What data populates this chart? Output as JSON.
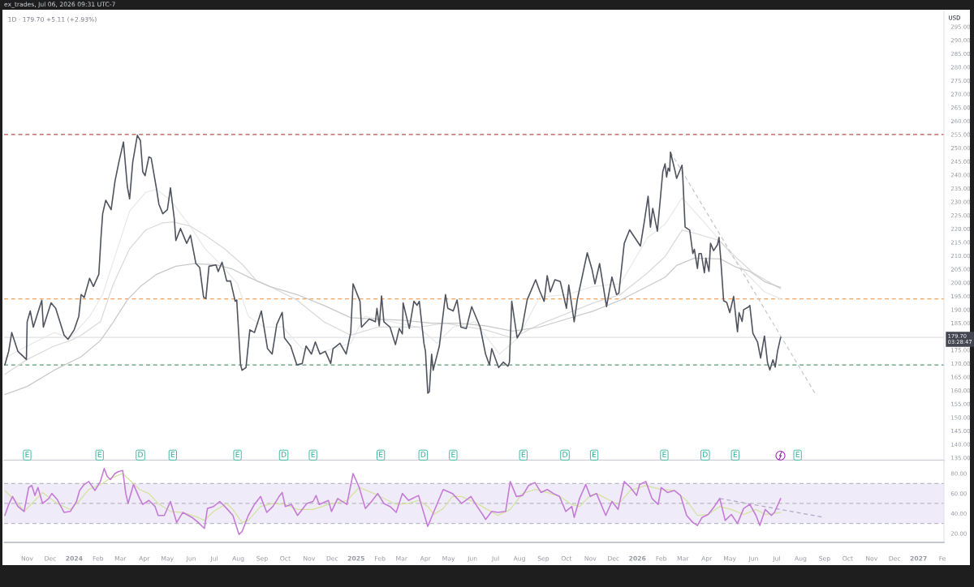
{
  "chart_data": [
    {
      "type": "line",
      "title": "1D · 179.70 +5.11 (+2.93%)",
      "ylabel": "USD",
      "xlim": [
        "2023-10-02",
        "2027-02-03"
      ],
      "ylim": [
        134,
        301
      ],
      "tick_labels": "y",
      "yticks": [
        {
          "value": 135,
          "label": "135.00"
        },
        {
          "value": 140,
          "label": "140.00"
        },
        {
          "value": 145,
          "label": "145.00"
        },
        {
          "value": 150,
          "label": "150.00"
        },
        {
          "value": 155,
          "label": "155.00"
        },
        {
          "value": 160,
          "label": "160.00"
        },
        {
          "value": 165,
          "label": "165.00"
        },
        {
          "value": 170,
          "label": "170.00"
        },
        {
          "value": 175,
          "label": "175.00"
        },
        {
          "value": 185,
          "label": "185.00"
        },
        {
          "value": 190,
          "label": "190.00"
        },
        {
          "value": 195,
          "label": "195.00"
        },
        {
          "value": 200,
          "label": "200.00"
        },
        {
          "value": 205,
          "label": "205.00"
        },
        {
          "value": 210,
          "label": "210.00"
        },
        {
          "value": 215,
          "label": "215.00"
        },
        {
          "value": 220,
          "label": "220.00"
        },
        {
          "value": 225,
          "label": "225.00"
        },
        {
          "value": 230,
          "label": "230.00"
        },
        {
          "value": 235,
          "label": "235.00"
        },
        {
          "value": 240,
          "label": "240.00"
        },
        {
          "value": 245,
          "label": "245.00"
        },
        {
          "value": 250,
          "label": "250.00"
        },
        {
          "value": 255,
          "label": "255.00"
        },
        {
          "value": 260,
          "label": "260.00"
        },
        {
          "value": 265,
          "label": "265.00"
        },
        {
          "value": 270,
          "label": "270.00"
        },
        {
          "value": 275,
          "label": "275.00"
        },
        {
          "value": 280,
          "label": "280.00"
        },
        {
          "value": 285,
          "label": "285.00"
        },
        {
          "value": 290,
          "label": "290.00"
        },
        {
          "value": 295,
          "label": "295.00"
        }
      ],
      "series": [
        {
          "color": "#50535e",
          "x": [
            "2023-10-03",
            "2023-10-08",
            "2023-10-12",
            "2023-10-20",
            "2023-10-31",
            "2023-11-01",
            "2023-11-05",
            "2023-11-09",
            "2023-11-20",
            "2023-11-22",
            "2023-12-02",
            "2023-12-08",
            "2023-12-19",
            "2023-12-24",
            "2024-01-01",
            "2024-01-07",
            "2024-01-10",
            "2024-01-14",
            "2024-01-21",
            "2024-01-26",
            "2024-02-02",
            "2024-02-05",
            "2024-02-07",
            "2024-02-11",
            "2024-02-18",
            "2024-02-23",
            "2024-02-28",
            "2024-03-05",
            "2024-03-10",
            "2024-03-13",
            "2024-03-17",
            "2024-03-23",
            "2024-03-27",
            "2024-03-30",
            "2024-04-02",
            "2024-04-07",
            "2024-04-10",
            "2024-04-17",
            "2024-04-20",
            "2024-04-25",
            "2024-05-01",
            "2024-05-05",
            "2024-05-10",
            "2024-05-12",
            "2024-05-18",
            "2024-05-26",
            "2024-05-31",
            "2024-06-07",
            "2024-06-12",
            "2024-06-17",
            "2024-06-20",
            "2024-06-24",
            "2024-07-03",
            "2024-07-06",
            "2024-07-11",
            "2024-07-17",
            "2024-07-22",
            "2024-07-28",
            "2024-07-30",
            "2024-08-04",
            "2024-08-06",
            "2024-08-11",
            "2024-08-16",
            "2024-08-22",
            "2024-08-31",
            "2024-09-08",
            "2024-09-14",
            "2024-09-20",
            "2024-09-27",
            "2024-09-30",
            "2024-10-08",
            "2024-10-16",
            "2024-10-23",
            "2024-10-28",
            "2024-11-04",
            "2024-11-09",
            "2024-11-15",
            "2024-11-22",
            "2024-11-29",
            "2024-12-02",
            "2024-12-11",
            "2024-12-19",
            "2024-12-25",
            "2024-12-28",
            "2025-01-06",
            "2025-01-08",
            "2025-01-18",
            "2025-01-26",
            "2025-01-28",
            "2025-01-31",
            "2025-02-03",
            "2025-02-06",
            "2025-02-14",
            "2025-02-21",
            "2025-02-26",
            "2025-03-02",
            "2025-03-03",
            "2025-03-11",
            "2025-03-17",
            "2025-03-21",
            "2025-03-24",
            "2025-03-30",
            "2025-04-01",
            "2025-04-04",
            "2025-04-06",
            "2025-04-09",
            "2025-04-11",
            "2025-04-19",
            "2025-04-27",
            "2025-04-30",
            "2025-05-07",
            "2025-05-12",
            "2025-05-17",
            "2025-05-24",
            "2025-05-31",
            "2025-06-11",
            "2025-06-18",
            "2025-06-23",
            "2025-06-26",
            "2025-07-05",
            "2025-07-11",
            "2025-07-17",
            "2025-07-19",
            "2025-07-22",
            "2025-07-29",
            "2025-08-04",
            "2025-08-11",
            "2025-08-22",
            "2025-08-27",
            "2025-09-02",
            "2025-09-06",
            "2025-09-10",
            "2025-09-16",
            "2025-09-23",
            "2025-10-01",
            "2025-10-04",
            "2025-10-11",
            "2025-10-15",
            "2025-10-28",
            "2025-11-03",
            "2025-11-07",
            "2025-11-13",
            "2025-11-22",
            "2025-11-29",
            "2025-12-05",
            "2025-12-08",
            "2025-12-15",
            "2025-12-22",
            "2025-12-29",
            "2026-01-05",
            "2026-01-10",
            "2026-01-15",
            "2026-01-18",
            "2026-01-21",
            "2026-01-27",
            "2026-01-31",
            "2026-02-03",
            "2026-02-06",
            "2026-02-08",
            "2026-02-10",
            "2026-02-12",
            "2026-02-13",
            "2026-02-19",
            "2026-02-21",
            "2026-02-28",
            "2026-03-01",
            "2026-03-04",
            "2026-03-10",
            "2026-03-14",
            "2026-03-16",
            "2026-03-20",
            "2026-03-22",
            "2026-03-25",
            "2026-03-29",
            "2026-03-31",
            "2026-04-04",
            "2026-04-06",
            "2026-04-10",
            "2026-04-15",
            "2026-04-17",
            "2026-04-19",
            "2026-04-23",
            "2026-04-27",
            "2026-05-01",
            "2026-05-06",
            "2026-05-09",
            "2026-05-11",
            "2026-05-13",
            "2026-05-17",
            "2026-05-19",
            "2026-05-26",
            "2026-05-27",
            "2026-05-31",
            "2026-06-06",
            "2026-06-10",
            "2026-06-15",
            "2026-06-19",
            "2026-06-22",
            "2026-06-26",
            "2026-06-29",
            "2026-07-02",
            "2026-07-06"
          ],
          "values": [
            169.5,
            174.5,
            181.5,
            174.5,
            171.5,
            185.5,
            189.5,
            183.5,
            193.5,
            183.5,
            192.5,
            190.5,
            180.5,
            179,
            182.5,
            187.5,
            195.6,
            194.5,
            201.6,
            198.6,
            203.1,
            217.6,
            225.6,
            230.6,
            227.1,
            237.7,
            244.7,
            252.2,
            235.7,
            231.1,
            244.7,
            254.7,
            252.7,
            241.2,
            239.7,
            246.7,
            246.2,
            234.6,
            229.1,
            225.6,
            227.1,
            235.2,
            223.6,
            215.6,
            220.1,
            214.6,
            217.6,
            207.1,
            205.6,
            194.6,
            194.1,
            206.1,
            206.6,
            204.1,
            207.6,
            200.6,
            200.6,
            193.1,
            193.6,
            169.5,
            167.5,
            168.5,
            182.5,
            181.5,
            189.5,
            175.5,
            173.5,
            184.5,
            189,
            179.5,
            176.5,
            169.5,
            170,
            176.5,
            173.5,
            178,
            173.5,
            174.5,
            170,
            175.5,
            177.5,
            173.5,
            181.5,
            199.6,
            193.1,
            183.5,
            186.5,
            185.5,
            190.5,
            184,
            195.1,
            185.5,
            183.5,
            177,
            183,
            181,
            192.5,
            183,
            193.1,
            191.6,
            193.1,
            177.5,
            174.5,
            159,
            159.5,
            173.5,
            167.5,
            176.5,
            195.6,
            190.5,
            189.5,
            193.6,
            183.5,
            183,
            191.1,
            183.5,
            173.5,
            169.5,
            175.5,
            168.5,
            170.5,
            169,
            170.5,
            193.1,
            179.5,
            182.5,
            193.6,
            201.1,
            197.1,
            193.1,
            202.6,
            196.6,
            201.1,
            200.4,
            190.5,
            199.1,
            185.5,
            193.6,
            211.1,
            205.1,
            199.6,
            207.1,
            191.1,
            202.1,
            195.6,
            196.1,
            214.6,
            219.6,
            216.6,
            213.6,
            222.6,
            232.1,
            220.6,
            227.6,
            219.1,
            231.6,
            241.2,
            244.1,
            239.2,
            242.5,
            241.4,
            248.5,
            241.4,
            238.7,
            243.6,
            239.2,
            220.6,
            219.5,
            210.8,
            212.4,
            205.3,
            210.8,
            210.8,
            203.7,
            209.1,
            204.2,
            214.6,
            211.9,
            214.1,
            216.8,
            209.7,
            193.3,
            192.7,
            188.9,
            194.9,
            186.7,
            181.8,
            188.9,
            185.6,
            190,
            191.1,
            191.6,
            181.2,
            178,
            172,
            180.2,
            170.3,
            167.6,
            171.4,
            168.7,
            174.6,
            179.7
          ]
        },
        {
          "color": "#e9e9e9",
          "x": [
            "2023-10-03",
            "2023-11-01",
            "2023-12-06",
            "2023-12-27",
            "2024-01-21",
            "2024-02-07",
            "2024-02-25",
            "2024-03-13",
            "2024-04-03",
            "2024-04-17",
            "2024-05-05",
            "2024-05-29",
            "2024-06-19",
            "2024-07-10",
            "2024-07-31",
            "2024-08-14",
            "2024-09-04",
            "2024-09-28",
            "2024-10-23",
            "2024-11-20",
            "2024-12-25",
            "2025-01-12",
            "2025-02-16",
            "2025-03-23",
            "2025-04-16",
            "2025-05-07",
            "2025-06-04",
            "2025-07-06",
            "2025-07-30",
            "2025-08-27",
            "2025-10-01",
            "2025-11-05",
            "2025-12-10",
            "2026-01-14",
            "2026-02-06",
            "2026-02-28",
            "2026-03-31",
            "2026-04-23",
            "2026-05-20",
            "2026-06-15",
            "2026-07-06"
          ],
          "values": [
            172,
            176.5,
            181.5,
            179.5,
            187.5,
            195.6,
            211.6,
            226.6,
            233.6,
            234.6,
            230.6,
            221.6,
            212.6,
            206.6,
            199.6,
            187.5,
            183.5,
            183.5,
            175.5,
            174.5,
            177.5,
            187.5,
            185.5,
            183.5,
            177.5,
            183.5,
            185.5,
            173.5,
            179.5,
            194.6,
            195.6,
            198.6,
            199.6,
            216.6,
            221.7,
            231.5,
            221.7,
            214,
            204.2,
            196.6,
            194
          ]
        },
        {
          "color": "#dadada",
          "x": [
            "2023-10-03",
            "2023-11-01",
            "2023-12-06",
            "2023-12-27",
            "2024-01-10",
            "2024-02-04",
            "2024-02-21",
            "2024-03-13",
            "2024-04-03",
            "2024-04-24",
            "2024-05-08",
            "2024-05-30",
            "2024-06-19",
            "2024-07-14",
            "2024-08-07",
            "2024-08-25",
            "2024-09-11",
            "2024-10-16",
            "2024-11-20",
            "2024-12-25",
            "2025-01-29",
            "2025-03-23",
            "2025-04-26",
            "2025-06-18",
            "2025-07-23",
            "2025-08-27",
            "2025-10-01",
            "2025-11-05",
            "2025-12-10",
            "2026-01-14",
            "2026-02-06",
            "2026-02-28",
            "2026-03-16",
            "2026-04-17",
            "2026-05-08",
            "2026-05-31",
            "2026-07-06"
          ],
          "values": [
            166,
            171.5,
            176.5,
            178.5,
            180.5,
            185.5,
            199.6,
            212.6,
            219.6,
            222.1,
            222.6,
            221.1,
            217.6,
            212.6,
            206.6,
            200.6,
            198.6,
            193.6,
            185.5,
            180.5,
            183.5,
            183.5,
            185,
            182.5,
            179.5,
            184.5,
            188.5,
            192.5,
            195.6,
            203.6,
            209.7,
            219.5,
            218.4,
            215.7,
            209.7,
            203.7,
            197.7
          ]
        },
        {
          "color": "#c9c9c9",
          "x": [
            "2023-10-03",
            "2023-11-01",
            "2023-12-06",
            "2024-01-10",
            "2024-02-04",
            "2024-02-21",
            "2024-03-10",
            "2024-03-27",
            "2024-04-17",
            "2024-05-12",
            "2024-06-05",
            "2024-07-03",
            "2024-07-24",
            "2024-08-18",
            "2024-09-11",
            "2024-10-16",
            "2024-11-20",
            "2024-12-25",
            "2025-01-29",
            "2025-03-05",
            "2025-04-09",
            "2025-05-14",
            "2025-06-18",
            "2025-07-23",
            "2025-08-27",
            "2025-10-01",
            "2025-11-05",
            "2025-12-10",
            "2026-01-14",
            "2026-02-06",
            "2026-02-21",
            "2026-03-16",
            "2026-04-19",
            "2026-05-08",
            "2026-05-27",
            "2026-06-15",
            "2026-07-06"
          ],
          "values": [
            158.5,
            161.5,
            167.5,
            172.5,
            178.5,
            185.5,
            193.6,
            198.6,
            203.1,
            206.1,
            207.1,
            206.6,
            205.1,
            201.6,
            198.6,
            195.6,
            191.6,
            187,
            186.5,
            186,
            185,
            185,
            184,
            182,
            183.5,
            186.5,
            189.5,
            193.5,
            198.6,
            202,
            206.4,
            209.1,
            208.8,
            205.9,
            204.2,
            200.4,
            198.2
          ]
        },
        {
          "color": "#c5c7cc",
          "line_style": "dashed",
          "x": [
            "2026-02-13",
            "2026-08-21"
          ],
          "values": [
            248.5,
            158.3
          ]
        }
      ],
      "ref_lines": [
        {
          "axis": "y",
          "value": 255,
          "color": "#b5524f",
          "line_style": "dashed"
        },
        {
          "axis": "y",
          "value": 194,
          "color": "#f2a35e",
          "line_style": "dashed"
        },
        {
          "axis": "y",
          "value": 169.5,
          "color": "#5b9a74",
          "line_style": "dashed"
        },
        {
          "axis": "y",
          "value": 179.7,
          "label": "179.70\n03:28:47",
          "color": "#dfe1e6",
          "line_style": "solid"
        }
      ],
      "annotations": [
        "ex_trades, Jul 06, 2026 09:31 UTC-7",
        {
          "text": "E",
          "x": "2023-11-01",
          "y": 136
        },
        {
          "text": "E",
          "x": "2024-02-03",
          "y": 136
        },
        {
          "text": "D",
          "x": "2024-03-27",
          "y": 136
        },
        {
          "text": "E",
          "x": "2024-05-08",
          "y": 136
        },
        {
          "text": "E",
          "x": "2024-07-31",
          "y": 136
        },
        {
          "text": "D",
          "x": "2024-09-29",
          "y": 136
        },
        {
          "text": "E",
          "x": "2024-11-06",
          "y": 136
        },
        {
          "text": "E",
          "x": "2025-02-02",
          "y": 136
        },
        {
          "text": "D",
          "x": "2025-03-29",
          "y": 136
        },
        {
          "text": "E",
          "x": "2025-05-07",
          "y": 136
        },
        {
          "text": "E",
          "x": "2025-08-06",
          "y": 136
        },
        {
          "text": "D",
          "x": "2025-09-29",
          "y": 136
        },
        {
          "text": "E",
          "x": "2025-11-06",
          "y": 136
        },
        {
          "text": "E",
          "x": "2026-02-05",
          "y": 136
        },
        {
          "text": "D",
          "x": "2026-03-30",
          "y": 136
        },
        {
          "text": "E",
          "x": "2026-05-08",
          "y": 136
        },
        {
          "text": "E",
          "x": "2026-07-28",
          "y": 136
        }
      ]
    },
    {
      "type": "line",
      "xlim": [
        "2023-10-02",
        "2027-02-03"
      ],
      "ylim": [
        11,
        93
      ],
      "yticks": [
        {
          "value": 20,
          "label": "20.00"
        },
        {
          "value": 40,
          "label": "40.00"
        },
        {
          "value": 60,
          "label": "60.00"
        },
        {
          "value": 80,
          "label": "80.00"
        }
      ],
      "xticks": [
        {
          "value": "2023-11-01",
          "label": "Nov"
        },
        {
          "value": "2023-12-01",
          "label": "Dec"
        },
        {
          "value": "2024-01-01",
          "label": "2024"
        },
        {
          "value": "2024-02-01",
          "label": "Feb"
        },
        {
          "value": "2024-03-01",
          "label": "Mar"
        },
        {
          "value": "2024-04-01",
          "label": "Apr"
        },
        {
          "value": "2024-05-01",
          "label": "May"
        },
        {
          "value": "2024-06-01",
          "label": "Jun"
        },
        {
          "value": "2024-07-01",
          "label": "Jul"
        },
        {
          "value": "2024-08-01",
          "label": "Aug"
        },
        {
          "value": "2024-09-01",
          "label": "Sep"
        },
        {
          "value": "2024-10-01",
          "label": "Oct"
        },
        {
          "value": "2024-11-01",
          "label": "Nov"
        },
        {
          "value": "2024-12-01",
          "label": "Dec"
        },
        {
          "value": "2025-01-01",
          "label": "2025"
        },
        {
          "value": "2025-02-01",
          "label": "Feb"
        },
        {
          "value": "2025-03-01",
          "label": "Mar"
        },
        {
          "value": "2025-04-01",
          "label": "Apr"
        },
        {
          "value": "2025-05-01",
          "label": "May"
        },
        {
          "value": "2025-06-01",
          "label": "Jun"
        },
        {
          "value": "2025-07-01",
          "label": "Jul"
        },
        {
          "value": "2025-08-01",
          "label": "Aug"
        },
        {
          "value": "2025-09-01",
          "label": "Sep"
        },
        {
          "value": "2025-10-01",
          "label": "Oct"
        },
        {
          "value": "2025-11-01",
          "label": "Nov"
        },
        {
          "value": "2025-12-01",
          "label": "Dec"
        },
        {
          "value": "2026-01-01",
          "label": "2026"
        },
        {
          "value": "2026-02-01",
          "label": "Feb"
        },
        {
          "value": "2026-03-01",
          "label": "Mar"
        },
        {
          "value": "2026-04-01",
          "label": "Apr"
        },
        {
          "value": "2026-05-01",
          "label": "May"
        },
        {
          "value": "2026-06-01",
          "label": "Jun"
        },
        {
          "value": "2026-07-01",
          "label": "Jul"
        },
        {
          "value": "2026-08-01",
          "label": "Aug"
        },
        {
          "value": "2026-09-01",
          "label": "Sep"
        },
        {
          "value": "2026-10-01",
          "label": "Oct"
        },
        {
          "value": "2026-11-01",
          "label": "Nov"
        },
        {
          "value": "2026-12-01",
          "label": "Dec"
        },
        {
          "value": "2027-01-01",
          "label": "2027"
        },
        {
          "value": "2027-02-01",
          "label": "Fe"
        }
      ],
      "bands": [
        {
          "axis": "y",
          "from": 30,
          "to": 70,
          "color": "#f0ebf9"
        }
      ],
      "ref_lines": [
        {
          "axis": "y",
          "value": 70,
          "color": "#b8bac2",
          "line_style": "dashed"
        },
        {
          "axis": "y",
          "value": 50,
          "color": "#b8bac2",
          "line_style": "dashed"
        },
        {
          "axis": "y",
          "value": 30,
          "color": "#b8bac2",
          "line_style": "dashed"
        }
      ],
      "series": [
        {
          "color": "#c47bd6",
          "x": [
            "2023-10-03",
            "2023-10-08",
            "2023-10-13",
            "2023-10-20",
            "2023-10-28",
            "2023-11-03",
            "2023-11-07",
            "2023-11-11",
            "2023-11-15",
            "2023-11-21",
            "2023-11-29",
            "2023-12-03",
            "2023-12-10",
            "2023-12-19",
            "2023-12-27",
            "2024-01-04",
            "2024-01-08",
            "2024-01-14",
            "2024-01-20",
            "2024-01-28",
            "2024-02-04",
            "2024-02-09",
            "2024-02-13",
            "2024-02-17",
            "2024-02-23",
            "2024-02-28",
            "2024-03-04",
            "2024-03-08",
            "2024-03-11",
            "2024-03-18",
            "2024-03-26",
            "2024-03-30",
            "2024-04-07",
            "2024-04-15",
            "2024-04-19",
            "2024-04-27",
            "2024-05-05",
            "2024-05-13",
            "2024-05-21",
            "2024-06-02",
            "2024-06-10",
            "2024-06-18",
            "2024-06-22",
            "2024-06-30",
            "2024-07-08",
            "2024-07-17",
            "2024-07-25",
            "2024-08-02",
            "2024-08-06",
            "2024-08-14",
            "2024-08-22",
            "2024-08-30",
            "2024-09-07",
            "2024-09-15",
            "2024-09-23",
            "2024-09-27",
            "2024-10-01",
            "2024-10-09",
            "2024-10-17",
            "2024-10-29",
            "2024-11-06",
            "2024-11-10",
            "2024-11-14",
            "2024-11-26",
            "2024-11-30",
            "2024-12-08",
            "2024-12-20",
            "2024-12-28",
            "2025-01-05",
            "2025-01-13",
            "2025-01-21",
            "2025-01-29",
            "2025-02-06",
            "2025-02-14",
            "2025-02-22",
            "2025-03-02",
            "2025-03-10",
            "2025-03-23",
            "2025-04-04",
            "2025-04-12",
            "2025-04-24",
            "2025-05-06",
            "2025-05-18",
            "2025-05-30",
            "2025-06-07",
            "2025-06-15",
            "2025-06-18",
            "2025-06-26",
            "2025-07-04",
            "2025-07-14",
            "2025-07-20",
            "2025-07-28",
            "2025-08-05",
            "2025-08-13",
            "2025-08-21",
            "2025-08-29",
            "2025-09-06",
            "2025-09-14",
            "2025-09-22",
            "2025-09-30",
            "2025-10-08",
            "2025-10-11",
            "2025-10-18",
            "2025-10-26",
            "2025-11-01",
            "2025-11-09",
            "2025-11-21",
            "2025-11-29",
            "2025-12-07",
            "2025-12-15",
            "2025-12-23",
            "2025-12-31",
            "2026-01-04",
            "2026-01-12",
            "2026-01-20",
            "2026-01-28",
            "2026-02-01",
            "2026-02-09",
            "2026-02-18",
            "2026-02-26",
            "2026-03-06",
            "2026-03-14",
            "2026-03-20",
            "2026-03-26",
            "2026-04-03",
            "2026-04-11",
            "2026-04-18",
            "2026-04-25",
            "2026-05-03",
            "2026-05-11",
            "2026-05-19",
            "2026-05-27",
            "2026-06-04",
            "2026-06-09",
            "2026-06-16",
            "2026-06-24",
            "2026-06-28",
            "2026-07-06"
          ],
          "values": [
            38,
            49,
            57,
            47,
            42,
            66,
            68,
            58,
            66,
            50,
            55,
            60,
            54,
            41,
            42,
            52,
            63,
            69,
            72,
            63,
            72,
            85,
            77,
            74,
            80,
            82,
            83,
            60,
            50,
            69,
            55,
            49,
            53,
            47,
            38,
            38,
            52,
            31,
            41,
            36,
            31,
            25,
            45,
            47,
            52,
            45,
            38,
            19,
            22,
            38,
            49,
            57,
            41,
            47,
            57,
            61,
            47,
            49,
            38,
            50,
            52,
            58,
            49,
            53,
            42,
            55,
            49,
            80,
            66,
            45,
            52,
            60,
            50,
            47,
            41,
            60,
            53,
            58,
            27,
            42,
            64,
            60,
            50,
            57,
            47,
            38,
            34,
            42,
            41,
            42,
            72,
            57,
            58,
            68,
            71,
            61,
            64,
            60,
            57,
            42,
            47,
            36,
            55,
            69,
            57,
            60,
            38,
            52,
            44,
            72,
            66,
            58,
            69,
            72,
            55,
            49,
            66,
            61,
            63,
            58,
            38,
            31,
            28,
            36,
            39,
            47,
            55,
            33,
            39,
            30,
            45,
            49,
            38,
            28,
            44,
            38,
            41,
            55
          ]
        },
        {
          "color": "#d3e39c",
          "x": [
            "2023-10-03",
            "2023-10-20",
            "2023-10-28",
            "2023-11-07",
            "2023-11-21",
            "2023-12-10",
            "2023-12-27",
            "2024-01-08",
            "2024-01-20",
            "2024-02-04",
            "2024-02-17",
            "2024-03-04",
            "2024-03-11",
            "2024-03-26",
            "2024-04-07",
            "2024-04-19",
            "2024-05-05",
            "2024-05-21",
            "2024-06-10",
            "2024-06-18",
            "2024-06-30",
            "2024-07-17",
            "2024-07-25",
            "2024-08-06",
            "2024-08-14",
            "2024-08-30",
            "2024-09-15",
            "2024-10-01",
            "2024-10-17",
            "2024-11-06",
            "2024-11-26",
            "2024-12-20",
            "2025-01-05",
            "2025-01-21",
            "2025-02-06",
            "2025-02-22",
            "2025-03-10",
            "2025-03-23",
            "2025-04-04",
            "2025-04-12",
            "2025-04-24",
            "2025-05-06",
            "2025-05-18",
            "2025-06-07",
            "2025-06-18",
            "2025-07-04",
            "2025-07-20",
            "2025-07-28",
            "2025-08-05",
            "2025-08-21",
            "2025-09-06",
            "2025-09-22",
            "2025-10-08",
            "2025-10-18",
            "2025-11-01",
            "2025-11-09",
            "2025-11-29",
            "2025-12-07",
            "2025-12-23",
            "2026-01-12",
            "2026-02-01",
            "2026-02-18",
            "2026-03-06",
            "2026-03-20",
            "2026-04-03",
            "2026-04-18",
            "2026-05-03",
            "2026-05-19",
            "2026-06-04",
            "2026-06-16",
            "2026-07-06"
          ],
          "values": [
            63,
            50,
            42,
            50,
            61,
            50,
            44,
            53,
            64,
            69,
            75,
            80,
            75,
            64,
            60,
            50,
            42,
            41,
            36,
            33,
            42,
            50,
            44,
            31,
            33,
            47,
            50,
            49,
            44,
            44,
            49,
            53,
            66,
            61,
            55,
            49,
            50,
            53,
            47,
            39,
            45,
            57,
            57,
            50,
            45,
            38,
            44,
            52,
            60,
            64,
            61,
            57,
            49,
            47,
            58,
            60,
            52,
            49,
            63,
            68,
            64,
            63,
            53,
            38,
            39,
            47,
            44,
            39,
            44,
            39,
            41
          ]
        },
        {
          "color": "#b3a7c4",
          "line_style": "dashed",
          "x": [
            "2026-04-18",
            "2026-09-01"
          ],
          "values": [
            55,
            36
          ]
        }
      ]
    }
  ]
}
